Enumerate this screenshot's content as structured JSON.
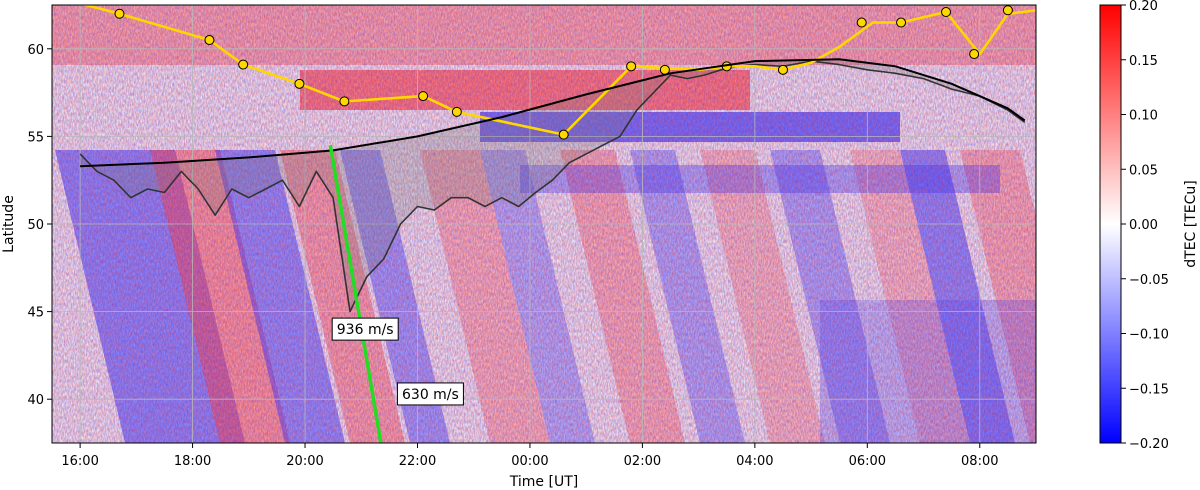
{
  "chart_data": {
    "type": "heatmap",
    "title": "",
    "xlabel": "Time [UT]",
    "ylabel": "Latitude",
    "xlim": [
      -0.5,
      17.0
    ],
    "ylim": [
      37.5,
      62.5
    ],
    "x_tick_values": [
      0,
      2,
      4,
      6,
      8,
      10,
      12,
      14,
      16
    ],
    "x_tick_labels": [
      "16:00",
      "18:00",
      "20:00",
      "22:00",
      "00:00",
      "02:00",
      "04:00",
      "06:00",
      "08:00"
    ],
    "y_ticks": [
      40,
      45,
      50,
      55,
      60
    ],
    "grid": true,
    "colorbar": {
      "label": "dTEC [TECu]",
      "colormap": "bwr",
      "vmin": -0.2,
      "vmax": 0.2,
      "ticks": [
        0.2,
        0.15,
        0.1,
        0.05,
        0.0,
        -0.05,
        -0.1,
        -0.15,
        -0.2
      ],
      "tick_labels": [
        "0.20",
        "0.15",
        "0.10",
        "0.05",
        "0.00",
        "−0.05",
        "−0.10",
        "−0.15",
        "−0.20"
      ]
    },
    "colors": {
      "negative": "#0000ff",
      "positive": "#ff0000",
      "zero": "#ffffff"
    },
    "series": [
      {
        "style": "yellow-line-markers",
        "color": "#ffd700",
        "x": [
          -0.5,
          0.7,
          2.3,
          2.9,
          3.9,
          4.7,
          6.1,
          6.7,
          8.6,
          9.8,
          10.4,
          11.0,
          11.5,
          12.0,
          12.5,
          13.0,
          13.5,
          14.1,
          14.6,
          15.4,
          16.0,
          16.5,
          17.0
        ],
        "y": [
          63.0,
          62.0,
          60.5,
          59.1,
          58.0,
          57.0,
          57.3,
          56.4,
          55.1,
          59.0,
          58.9,
          58.8,
          59.0,
          59.0,
          58.8,
          59.2,
          60.1,
          61.5,
          61.5,
          62.1,
          59.7,
          62.0,
          62.2
        ],
        "marker_x": [
          0.7,
          2.3,
          2.9,
          3.9,
          4.7,
          6.1,
          6.7,
          8.6,
          9.8,
          10.4,
          11.5,
          12.5,
          13.9,
          14.6,
          15.4,
          15.9,
          16.5
        ],
        "marker_y": [
          62.0,
          60.5,
          59.1,
          58.0,
          57.0,
          57.3,
          56.4,
          55.1,
          59.0,
          58.8,
          59.0,
          58.8,
          61.5,
          61.5,
          62.1,
          59.7,
          62.2
        ]
      },
      {
        "style": "black-smooth-curve",
        "color": "#000000",
        "x": [
          0.0,
          1.5,
          3.0,
          4.5,
          6.0,
          7.5,
          9.0,
          10.5,
          12.0,
          13.5,
          14.5,
          15.5,
          16.5,
          16.8
        ],
        "y": [
          53.3,
          53.5,
          53.8,
          54.2,
          55.0,
          56.1,
          57.4,
          58.6,
          59.3,
          59.4,
          59.0,
          58.0,
          56.6,
          55.9
        ]
      },
      {
        "style": "gray-trough-line",
        "color": "#333333",
        "x": [
          0.0,
          0.3,
          0.6,
          0.9,
          1.2,
          1.5,
          1.8,
          2.1,
          2.4,
          2.7,
          3.0,
          3.3,
          3.6,
          3.9,
          4.2,
          4.5,
          4.8,
          5.1,
          5.4,
          5.7,
          6.0,
          6.3,
          6.6,
          6.9,
          7.2,
          7.5,
          7.8,
          8.1,
          8.4,
          8.7,
          9.0,
          9.3,
          9.6,
          9.9,
          10.2,
          10.5,
          10.8,
          11.1,
          11.4,
          11.7,
          12.0,
          12.5,
          13.0,
          13.5,
          14.0,
          14.5,
          15.0,
          15.5,
          16.0,
          16.5,
          16.8
        ],
        "y": [
          54.0,
          53.0,
          52.5,
          51.5,
          52.0,
          51.8,
          53.0,
          52.0,
          50.5,
          52.0,
          51.5,
          52.0,
          52.5,
          51.0,
          53.0,
          51.5,
          45.0,
          47.0,
          48.0,
          50.0,
          51.0,
          50.8,
          51.5,
          51.5,
          51.0,
          51.5,
          51.0,
          51.8,
          52.5,
          53.5,
          54.0,
          54.5,
          55.0,
          56.5,
          57.5,
          58.5,
          58.3,
          58.5,
          58.8,
          59.0,
          59.1,
          59.0,
          59.3,
          59.1,
          58.8,
          58.6,
          58.3,
          57.7,
          57.3,
          56.5,
          55.8
        ]
      },
      {
        "style": "green-front-line",
        "color": "#22dd22",
        "x": [
          4.45,
          5.35
        ],
        "y": [
          54.5,
          37.5
        ]
      }
    ],
    "annotations": [
      {
        "text": "936 m/s",
        "x": 5.07,
        "y": 44.0
      },
      {
        "text": "630 m/s",
        "x": 6.23,
        "y": 40.3
      }
    ]
  }
}
